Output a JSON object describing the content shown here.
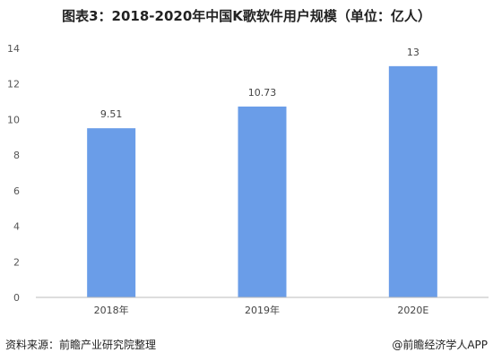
{
  "title": "图表3：2018-2020年中国K歌软件用户规模（单位：亿人）",
  "source": "资料来源：前瞻产业研究院整理",
  "credit": "@前瞻经济学人APP",
  "colors": {
    "bar": "#6a9de8",
    "axis": "#bbbbbb"
  },
  "chart_data": {
    "type": "bar",
    "title": "图表3：2018-2020年中国K歌软件用户规模（单位：亿人）",
    "categories": [
      "2018年",
      "2019年",
      "2020E"
    ],
    "values": [
      9.51,
      10.73,
      13
    ],
    "value_labels": [
      "9.51",
      "10.73",
      "13"
    ],
    "xlabel": "",
    "ylabel": "",
    "ylim": [
      0,
      14
    ],
    "yticks": [
      0,
      2,
      4,
      6,
      8,
      10,
      12,
      14
    ],
    "grid": false
  }
}
